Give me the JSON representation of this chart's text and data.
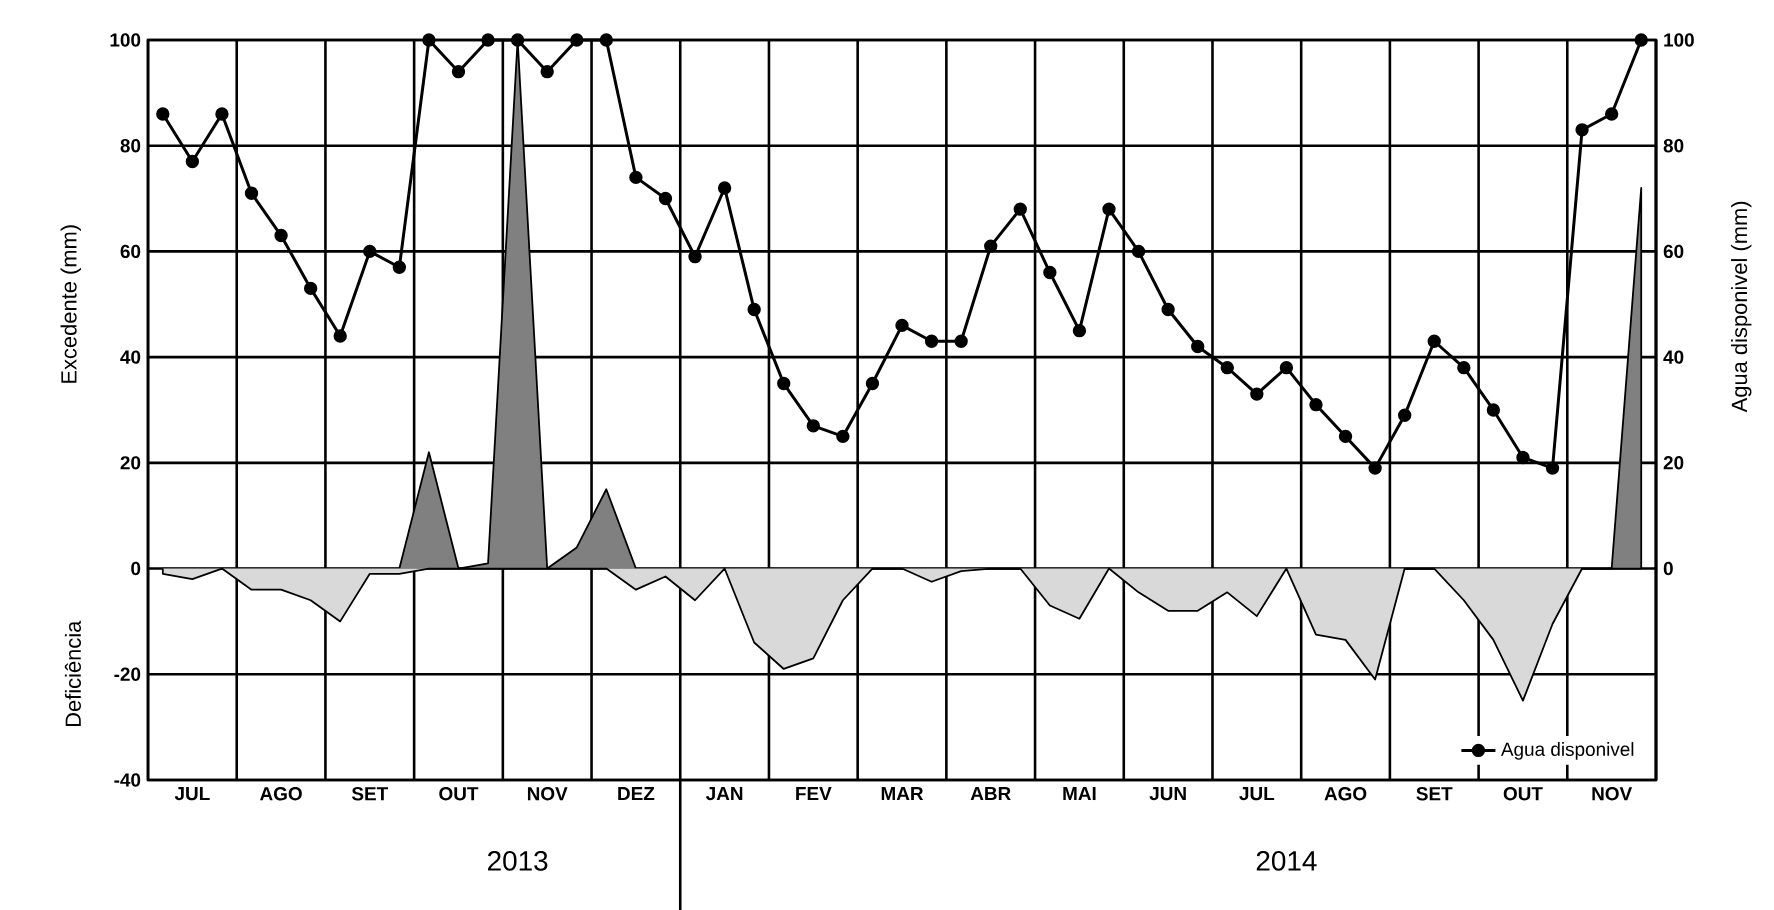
{
  "chart_data": {
    "type": "line",
    "ylabel": "Excedente (mm)",
    "y2label": "Agua disponivel (mm)",
    "categories": [
      null,
      "JUL",
      null,
      null,
      "AGO",
      null,
      null,
      "SET",
      null,
      null,
      "OUT",
      null,
      null,
      "NOV",
      null,
      null,
      "DEZ",
      null,
      null,
      "JAN",
      null,
      null,
      "FEV",
      null,
      null,
      "MAR",
      null,
      null,
      "ABR",
      null,
      null,
      "MAI",
      null,
      null,
      "JUN",
      null,
      null,
      "JUL",
      null,
      null,
      "AGO",
      null,
      null,
      "SET",
      null,
      null,
      "OUT",
      null,
      null,
      "NOV",
      null
    ],
    "series": [
      {
        "type": "area",
        "color": "#808080",
        "values": [
          0,
          0,
          0,
          0,
          0,
          0,
          0,
          0,
          0,
          22,
          0,
          1,
          100,
          0,
          4,
          15,
          0,
          0,
          0,
          0,
          0,
          0,
          0,
          0,
          0,
          0,
          0,
          0,
          0,
          0,
          0,
          0,
          0,
          0,
          0,
          0,
          0,
          0,
          0,
          0,
          0,
          0,
          0,
          0,
          0,
          0,
          0,
          0,
          0,
          0,
          72
        ]
      },
      {
        "type": "area",
        "color": "#d9d9d9",
        "values": [
          -1,
          -2,
          0,
          -4,
          -4,
          -6,
          -10,
          -1,
          -1,
          0,
          0,
          0,
          0,
          0,
          0,
          0,
          -4,
          -1.5,
          -6,
          0,
          -14,
          -19,
          -17,
          -6,
          0,
          0,
          -2.5,
          -0.5,
          0,
          0,
          -7,
          -9.5,
          0,
          -4.5,
          -8,
          -8,
          -4.5,
          -9,
          0,
          -12.5,
          -13.5,
          -21,
          0,
          0,
          -6,
          -13.5,
          -25,
          -10.5,
          0,
          0,
          0
        ]
      },
      {
        "name": "Agua disponivel",
        "axis": "y2",
        "color": "#000000",
        "marker": "circle",
        "values": [
          86,
          77,
          86,
          71,
          63,
          53,
          44,
          60,
          57,
          100,
          94,
          100,
          100,
          94,
          100,
          100,
          74,
          70,
          59,
          72,
          49,
          35,
          27,
          25,
          35,
          46,
          43,
          43,
          61,
          68,
          56,
          45,
          68,
          60,
          49,
          42,
          38,
          33,
          38,
          31,
          25,
          19,
          29,
          43,
          38,
          30,
          21,
          19,
          83,
          86,
          100
        ]
      }
    ],
    "ylim": [
      -40,
      100
    ],
    "yticks": [
      -40,
      -20,
      0,
      20,
      40,
      60,
      80,
      100
    ],
    "y2lim": [
      -40,
      100
    ],
    "y2ticks": [
      0,
      20,
      40,
      60,
      80,
      100
    ],
    "annotations": [
      "Deficiência",
      "2013",
      "2014"
    ],
    "grid": true,
    "legend": "bottom right",
    "line_style": "solid"
  }
}
